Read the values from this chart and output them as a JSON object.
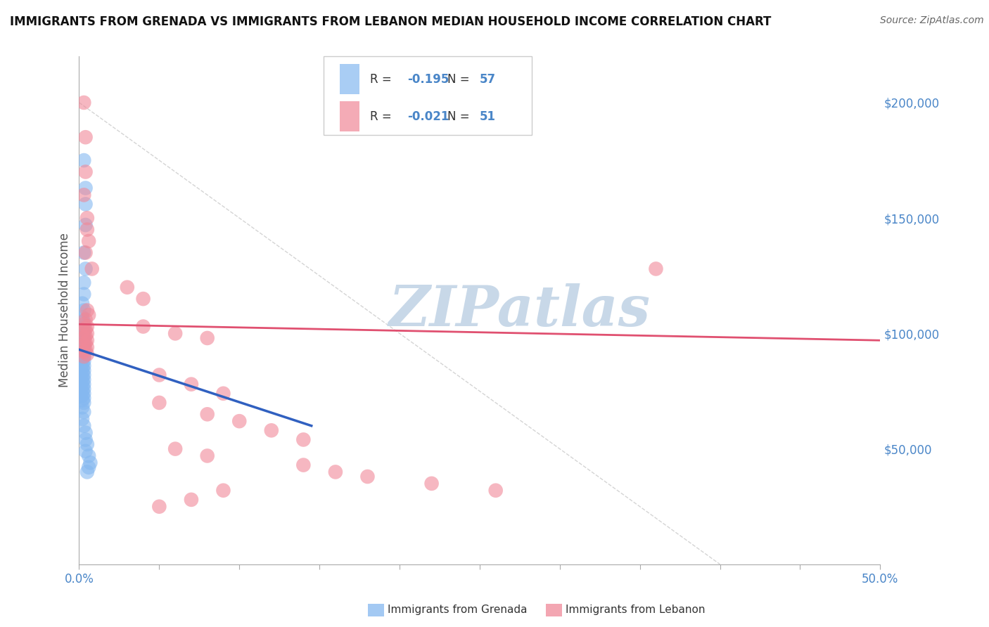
{
  "title": "IMMIGRANTS FROM GRENADA VS IMMIGRANTS FROM LEBANON MEDIAN HOUSEHOLD INCOME CORRELATION CHART",
  "source": "Source: ZipAtlas.com",
  "ylabel": "Median Household Income",
  "xlim": [
    0.0,
    0.5
  ],
  "ylim": [
    0,
    220000
  ],
  "yticks": [
    50000,
    100000,
    150000,
    200000
  ],
  "ytick_labels": [
    "$50,000",
    "$100,000",
    "$150,000",
    "$200,000"
  ],
  "xtick_positions": [
    0.0,
    0.05,
    0.1,
    0.15,
    0.2,
    0.25,
    0.3,
    0.35,
    0.4,
    0.45,
    0.5
  ],
  "xtick_labels_show": [
    "0.0%",
    "",
    "",
    "",
    "",
    "",
    "",
    "",
    "",
    "",
    "50.0%"
  ],
  "grenada_r": "-0.195",
  "grenada_n": "57",
  "lebanon_r": "-0.021",
  "lebanon_n": "51",
  "watermark": "ZIPatlas",
  "grenada_color": "#85b8f0",
  "lebanon_color": "#f08898",
  "grenada_trend_x": [
    0.0,
    0.145
  ],
  "grenada_trend_y": [
    93000,
    60000
  ],
  "lebanon_trend_x": [
    0.0,
    0.5
  ],
  "lebanon_trend_y": [
    104000,
    97000
  ],
  "dashed_line_x": [
    0.0,
    0.4
  ],
  "dashed_line_y": [
    200000,
    0
  ],
  "grenada_points": [
    [
      0.003,
      175000
    ],
    [
      0.004,
      163000
    ],
    [
      0.004,
      156000
    ],
    [
      0.004,
      147000
    ],
    [
      0.003,
      135000
    ],
    [
      0.004,
      128000
    ],
    [
      0.003,
      122000
    ],
    [
      0.003,
      117000
    ],
    [
      0.002,
      113000
    ],
    [
      0.003,
      110000
    ],
    [
      0.002,
      107000
    ],
    [
      0.003,
      105000
    ],
    [
      0.003,
      103000
    ],
    [
      0.002,
      101000
    ],
    [
      0.003,
      100000
    ],
    [
      0.002,
      99000
    ],
    [
      0.003,
      98000
    ],
    [
      0.002,
      97000
    ],
    [
      0.003,
      96000
    ],
    [
      0.002,
      95000
    ],
    [
      0.003,
      94000
    ],
    [
      0.002,
      93000
    ],
    [
      0.003,
      92000
    ],
    [
      0.002,
      91000
    ],
    [
      0.003,
      90000
    ],
    [
      0.002,
      89000
    ],
    [
      0.003,
      88000
    ],
    [
      0.002,
      87000
    ],
    [
      0.003,
      86000
    ],
    [
      0.002,
      85000
    ],
    [
      0.003,
      84000
    ],
    [
      0.002,
      83000
    ],
    [
      0.003,
      82000
    ],
    [
      0.002,
      81000
    ],
    [
      0.003,
      80000
    ],
    [
      0.002,
      79000
    ],
    [
      0.003,
      78000
    ],
    [
      0.002,
      77000
    ],
    [
      0.003,
      76000
    ],
    [
      0.002,
      75000
    ],
    [
      0.003,
      74000
    ],
    [
      0.002,
      73000
    ],
    [
      0.003,
      72000
    ],
    [
      0.002,
      71000
    ],
    [
      0.003,
      70000
    ],
    [
      0.002,
      68000
    ],
    [
      0.003,
      66000
    ],
    [
      0.002,
      63000
    ],
    [
      0.003,
      60000
    ],
    [
      0.004,
      57000
    ],
    [
      0.004,
      54000
    ],
    [
      0.005,
      52000
    ],
    [
      0.004,
      49000
    ],
    [
      0.006,
      47000
    ],
    [
      0.007,
      44000
    ],
    [
      0.006,
      42000
    ],
    [
      0.005,
      40000
    ]
  ],
  "lebanon_points": [
    [
      0.003,
      200000
    ],
    [
      0.004,
      185000
    ],
    [
      0.004,
      170000
    ],
    [
      0.003,
      160000
    ],
    [
      0.005,
      150000
    ],
    [
      0.005,
      145000
    ],
    [
      0.006,
      140000
    ],
    [
      0.004,
      135000
    ],
    [
      0.008,
      128000
    ],
    [
      0.03,
      120000
    ],
    [
      0.04,
      115000
    ],
    [
      0.005,
      110000
    ],
    [
      0.006,
      108000
    ],
    [
      0.004,
      106000
    ],
    [
      0.003,
      104000
    ],
    [
      0.005,
      103000
    ],
    [
      0.004,
      102000
    ],
    [
      0.003,
      101000
    ],
    [
      0.005,
      100000
    ],
    [
      0.004,
      99000
    ],
    [
      0.003,
      98000
    ],
    [
      0.005,
      97000
    ],
    [
      0.004,
      96000
    ],
    [
      0.003,
      95000
    ],
    [
      0.005,
      94000
    ],
    [
      0.004,
      93000
    ],
    [
      0.003,
      92000
    ],
    [
      0.005,
      91000
    ],
    [
      0.003,
      90000
    ],
    [
      0.04,
      103000
    ],
    [
      0.06,
      100000
    ],
    [
      0.08,
      98000
    ],
    [
      0.05,
      82000
    ],
    [
      0.07,
      78000
    ],
    [
      0.09,
      74000
    ],
    [
      0.05,
      70000
    ],
    [
      0.08,
      65000
    ],
    [
      0.1,
      62000
    ],
    [
      0.12,
      58000
    ],
    [
      0.14,
      54000
    ],
    [
      0.06,
      50000
    ],
    [
      0.08,
      47000
    ],
    [
      0.36,
      128000
    ],
    [
      0.14,
      43000
    ],
    [
      0.16,
      40000
    ],
    [
      0.18,
      38000
    ],
    [
      0.22,
      35000
    ],
    [
      0.26,
      32000
    ],
    [
      0.09,
      32000
    ],
    [
      0.07,
      28000
    ],
    [
      0.05,
      25000
    ]
  ],
  "title_fontsize": 12,
  "source_fontsize": 10,
  "tick_color": "#4a86c8",
  "grid_color": "#cccccc",
  "axis_label_color": "#555555",
  "watermark_color": "#c8d8e8",
  "legend_value_color": "#4a86c8",
  "grenada_trend_color": "#3060c0",
  "lebanon_trend_color": "#e05070",
  "dashed_color": "#aaaaaa"
}
